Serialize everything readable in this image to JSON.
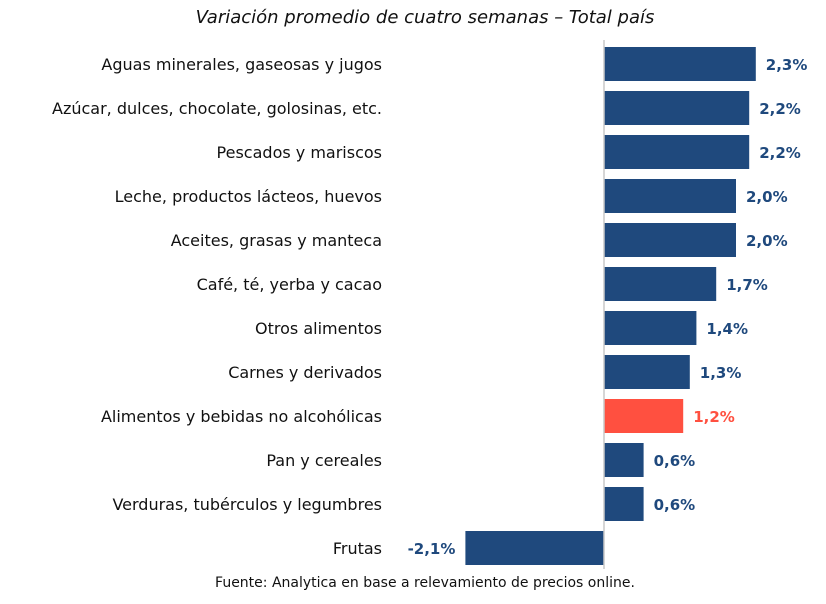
{
  "chart_data": {
    "type": "bar",
    "orientation": "horizontal",
    "title": "Variación promedio de cuatro semanas – Total país",
    "categories": [
      "Aguas minerales, gaseosas y jugos",
      "Azúcar, dulces, chocolate, golosinas, etc.",
      "Pescados y mariscos",
      "Leche, productos lácteos, huevos",
      "Aceites, grasas y manteca",
      "Café, té, yerba y cacao",
      "Otros alimentos",
      "Carnes y derivados",
      "Alimentos y bebidas no alcohólicas",
      "Pan y cereales",
      "Verduras, tubérculos y legumbres",
      "Frutas"
    ],
    "values": [
      2.3,
      2.2,
      2.2,
      2.0,
      2.0,
      1.7,
      1.4,
      1.3,
      1.2,
      0.6,
      0.6,
      -2.1
    ],
    "value_labels": [
      "2,3%",
      "2,2%",
      "2,2%",
      "2,0%",
      "2,0%",
      "1,7%",
      "1,4%",
      "1,3%",
      "1,2%",
      "0,6%",
      "0,6%",
      "-2,1%"
    ],
    "highlight_category": "Alimentos y bebidas no alcohólicas",
    "xlabel": "",
    "ylabel": "",
    "xlim": [
      -2.1,
      2.3
    ],
    "grid": false,
    "legend": "none",
    "source": "Fuente: Analytica en base a relevamiento de precios online."
  },
  "colors": {
    "bar": "#1f497d",
    "highlight": "#ff5040",
    "axis": "#c8c8c8",
    "text": "#111111"
  }
}
